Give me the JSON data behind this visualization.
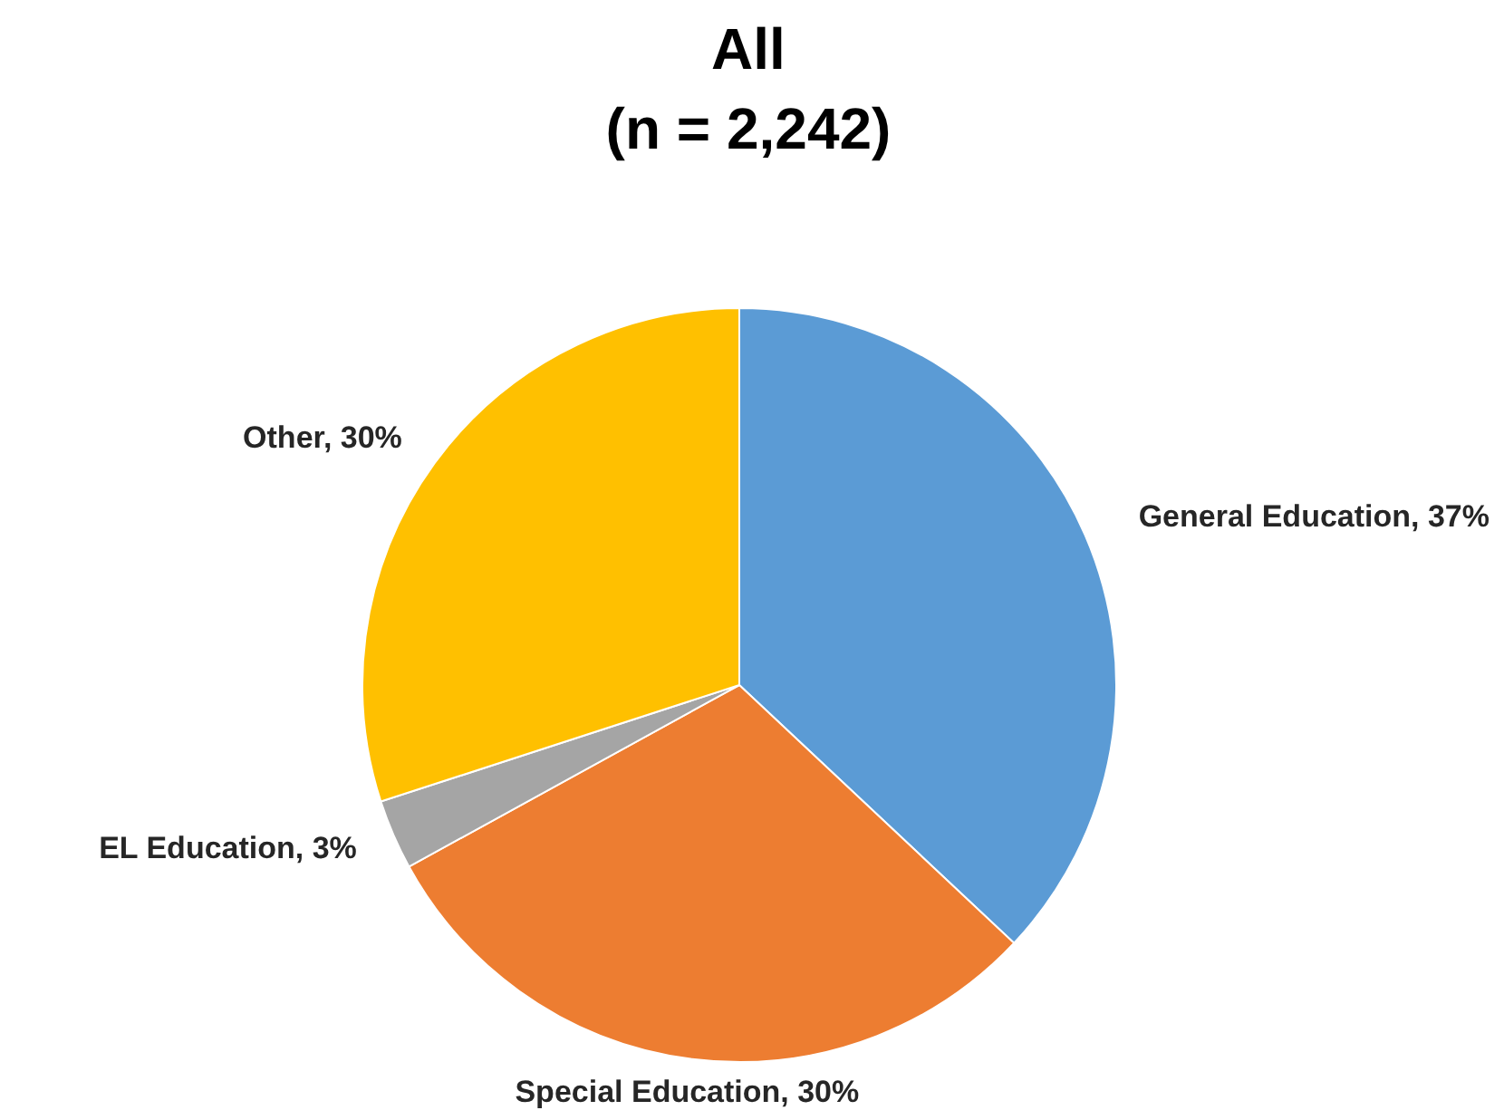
{
  "chart_data": {
    "type": "pie",
    "title": "All\n(n = 2,242)",
    "categories": [
      "General Education",
      "Special Education",
      "EL Education",
      "Other"
    ],
    "values": [
      37,
      30,
      3,
      30
    ],
    "colors": [
      "#5b9bd5",
      "#ed7d31",
      "#a5a5a5",
      "#ffc000"
    ],
    "value_labels": [
      "37%",
      "30%",
      "3%",
      "30%"
    ]
  }
}
